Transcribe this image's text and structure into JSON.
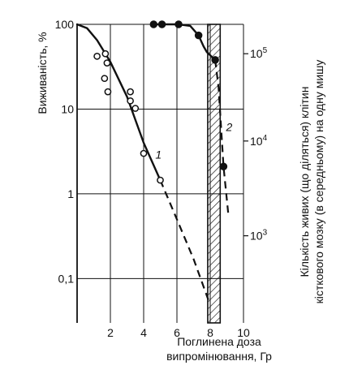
{
  "chart_data": {
    "type": "scatter",
    "xlabel_lines": [
      "Поглинена доза",
      "випромінювання, Гр"
    ],
    "ylabel": "Виживаність, %",
    "y2label_lines": [
      "Кількість живих (що діляться) клітин",
      "кісткового мозку (в середньому) на одну мишу"
    ],
    "xlim": [
      0,
      10
    ],
    "ylim": [
      0.03,
      100
    ],
    "y_scale": "log",
    "y2_scale": "log",
    "grid": true,
    "x_ticks": [
      2,
      4,
      6,
      8,
      10
    ],
    "y_ticks": [
      {
        "value": 100,
        "label": "100"
      },
      {
        "value": 10,
        "label": "10"
      },
      {
        "value": 1,
        "label": "1"
      },
      {
        "value": 0.1,
        "label": "0,1"
      }
    ],
    "y2_ticks": [
      {
        "base": "10",
        "exp": "5",
        "pos": 45
      },
      {
        "base": "10",
        "exp": "4",
        "pos": 4.2
      },
      {
        "base": "10",
        "exp": "3",
        "pos": 0.32
      }
    ],
    "series": [
      {
        "name": "1",
        "marker": "open-circle",
        "points": [
          {
            "x": 1.2,
            "y": 42
          },
          {
            "x": 1.7,
            "y": 45
          },
          {
            "x": 1.8,
            "y": 35
          },
          {
            "x": 1.65,
            "y": 23
          },
          {
            "x": 1.85,
            "y": 16
          },
          {
            "x": 3.2,
            "y": 16
          },
          {
            "x": 3.2,
            "y": 12.5
          },
          {
            "x": 3.5,
            "y": 10.2
          },
          {
            "x": 4.0,
            "y": 3.0
          },
          {
            "x": 5.0,
            "y": 1.45
          }
        ],
        "fit_solid": [
          [
            0,
            100
          ],
          [
            0.6,
            90
          ],
          [
            1.2,
            65
          ],
          [
            2,
            36
          ],
          [
            3,
            14
          ],
          [
            4,
            4
          ],
          [
            5,
            1.45
          ]
        ],
        "fit_dashed": [
          [
            5,
            1.45
          ],
          [
            6,
            0.5
          ],
          [
            7,
            0.17
          ],
          [
            7.9,
            0.055
          ]
        ]
      },
      {
        "name": "2",
        "marker": "filled-circle",
        "points": [
          {
            "x": 4.6,
            "y": 100
          },
          {
            "x": 5.1,
            "y": 100
          },
          {
            "x": 6.1,
            "y": 100
          },
          {
            "x": 7.3,
            "y": 74
          },
          {
            "x": 8.3,
            "y": 38
          },
          {
            "x": 8.8,
            "y": 2.1
          }
        ],
        "fit_solid": [
          [
            4.6,
            100
          ],
          [
            6.1,
            100
          ],
          [
            6.8,
            96
          ],
          [
            7.3,
            74
          ],
          [
            7.6,
            55
          ],
          [
            7.8,
            47
          ],
          [
            8.3,
            38
          ]
        ],
        "fit_dashed": [
          [
            8.3,
            38
          ],
          [
            8.5,
            18
          ],
          [
            8.8,
            2.1
          ],
          [
            9.1,
            0.55
          ]
        ]
      }
    ],
    "shaded_band": {
      "x_from": 7.85,
      "x_to": 8.6
    }
  }
}
